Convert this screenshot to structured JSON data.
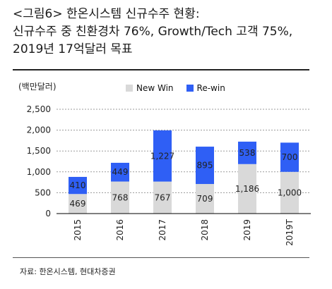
{
  "header": {
    "lines": [
      "<그림6> 한온시스템 신규수주 현황:",
      "신규수주 중 친환경차 76%, Growth/Tech 고객 75%,",
      "2019년 17억달러 목표"
    ]
  },
  "unit_label": "(백만달러)",
  "source": "자료: 한온시스템, 현대차증권",
  "colors": {
    "new_win": "#d9d9d9",
    "re_win": "#2f5ff5",
    "grid": "#9a9a9a",
    "axis": "#000000"
  },
  "chart_data": {
    "type": "bar",
    "stacked": true,
    "categories": [
      "2015",
      "2016",
      "2017",
      "2018",
      "2019",
      "2019T"
    ],
    "series": [
      {
        "name": "New Win",
        "values": [
          469,
          768,
          767,
          709,
          1186,
          1000
        ],
        "color": "#d9d9d9"
      },
      {
        "name": "Re-win",
        "values": [
          410,
          449,
          1227,
          895,
          538,
          700
        ],
        "color": "#2f5ff5"
      }
    ],
    "data_labels": {
      "New Win": [
        "469",
        "768",
        "767",
        "709",
        "1,186",
        "1,000"
      ],
      "Re-win": [
        "410",
        "449",
        "1,227",
        "895",
        "538",
        "700"
      ]
    },
    "y_ticks": [
      0,
      500,
      1000,
      1500,
      2000,
      2500
    ],
    "y_tick_labels": [
      "0",
      "500",
      "1,000",
      "1,500",
      "2,000",
      "2,500"
    ],
    "ylim": [
      0,
      2500
    ],
    "grid": true,
    "legend_position": "top"
  }
}
